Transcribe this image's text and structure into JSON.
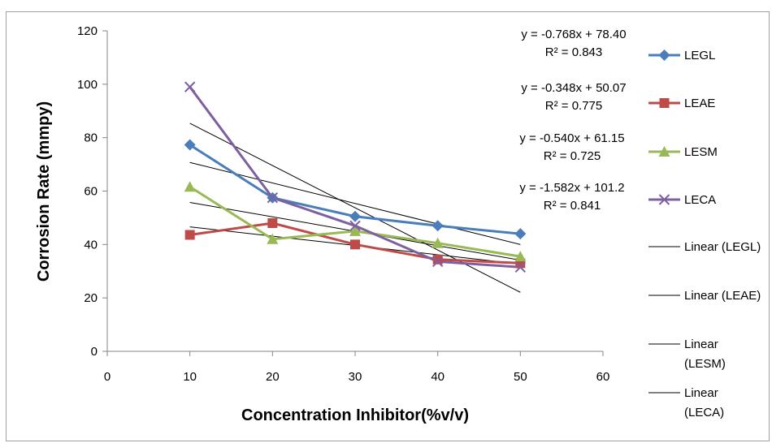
{
  "chart_data": {
    "type": "line",
    "title": "",
    "xlabel": "Concentration  Inhibitor(%v/v)",
    "ylabel": "Corrosion Rate (mmpy)",
    "xlim": [
      0,
      60
    ],
    "ylim": [
      0,
      120
    ],
    "x_ticks": [
      "0",
      "10",
      "20",
      "30",
      "40",
      "50",
      "60"
    ],
    "y_ticks": [
      "0",
      "20",
      "40",
      "60",
      "80",
      "100",
      "120"
    ],
    "grid": false,
    "legend_position": "right",
    "x": [
      10,
      20,
      30,
      40,
      50
    ],
    "series": [
      {
        "name": "LEGL",
        "marker": "diamond",
        "color": "#4a7ebb",
        "values": [
          77.3,
          57.5,
          50.5,
          47.0,
          44.0
        ]
      },
      {
        "name": "LEAE",
        "marker": "square",
        "color": "#be4b48",
        "values": [
          43.6,
          48.0,
          40.0,
          34.4,
          33.0
        ]
      },
      {
        "name": "LESM",
        "marker": "triangle",
        "color": "#98b954",
        "values": [
          61.6,
          42.0,
          45.0,
          40.5,
          35.5
        ]
      },
      {
        "name": "LECA",
        "marker": "x",
        "color": "#7d60a0",
        "values": [
          99.0,
          57.5,
          47.0,
          33.6,
          31.5
        ]
      }
    ],
    "trendlines": [
      {
        "name": "Linear (LEGL)",
        "slope": -0.768,
        "intercept": 78.4,
        "equation": "y = -0.768x + 78.40",
        "r2": "R² = 0.843"
      },
      {
        "name": "Linear (LEAE)",
        "slope": -0.348,
        "intercept": 50.07,
        "equation": "y = -0.348x + 50.07",
        "r2": "R² = 0.775"
      },
      {
        "name": "Linear (LESM)",
        "slope": -0.54,
        "intercept": 61.15,
        "equation": "y = -0.540x + 61.15",
        "r2": "R² = 0.725"
      },
      {
        "name": "Linear (LECA)",
        "slope": -1.582,
        "intercept": 101.2,
        "equation": "y = -1.582x + 101.2",
        "r2": "R² = 0.841"
      }
    ],
    "legend_entries": [
      "LEGL",
      "LEAE",
      "LESM",
      "LECA",
      "Linear (LEGL)",
      "Linear (LEAE)",
      "Linear (LESM)",
      "Linear (LECA)"
    ]
  }
}
